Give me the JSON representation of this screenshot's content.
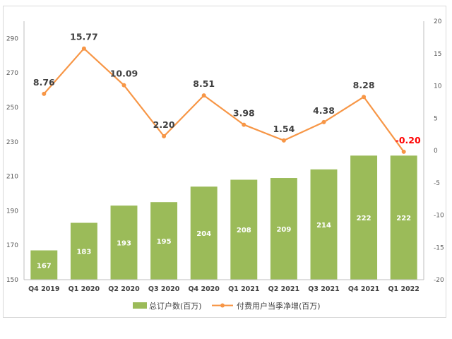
{
  "chart_data": {
    "type": "bar+line",
    "categories": [
      "Q4 2019",
      "Q1 2020",
      "Q2 2020",
      "Q3 2020",
      "Q4 2020",
      "Q1 2021",
      "Q2 2021",
      "Q3 2021",
      "Q4 2021",
      "Q1 2022"
    ],
    "series": [
      {
        "name": "总订户数(百万)",
        "type": "bar",
        "axis": "left",
        "color": "#9bbb59",
        "values": [
          167,
          183,
          193,
          195,
          204,
          208,
          209,
          214,
          222,
          222
        ],
        "labels": [
          "167",
          "183",
          "193",
          "195",
          "204",
          "208",
          "209",
          "214",
          "222",
          "222"
        ]
      },
      {
        "name": "付费用户当季净增(百万)",
        "type": "line",
        "axis": "right",
        "color": "#f79646",
        "values": [
          8.76,
          15.77,
          10.09,
          2.2,
          8.51,
          3.98,
          1.54,
          4.38,
          8.28,
          -0.2
        ],
        "labels": [
          "8.76",
          "15.77",
          "10.09",
          "2.20",
          "8.51",
          "3.98",
          "1.54",
          "4.38",
          "8.28",
          "-0.20"
        ],
        "highlight_color": "#ff0000"
      }
    ],
    "y_left": {
      "range": [
        150,
        300
      ],
      "ticks": [
        "150",
        "170",
        "190",
        "210",
        "230",
        "250",
        "270",
        "290"
      ]
    },
    "y_right": {
      "range": [
        -20,
        20
      ],
      "ticks": [
        "-20",
        "-15",
        "-10",
        "-5",
        "0",
        "5",
        "10",
        "15",
        "20"
      ]
    },
    "legend": {
      "position": "bottom"
    },
    "grid": false
  }
}
